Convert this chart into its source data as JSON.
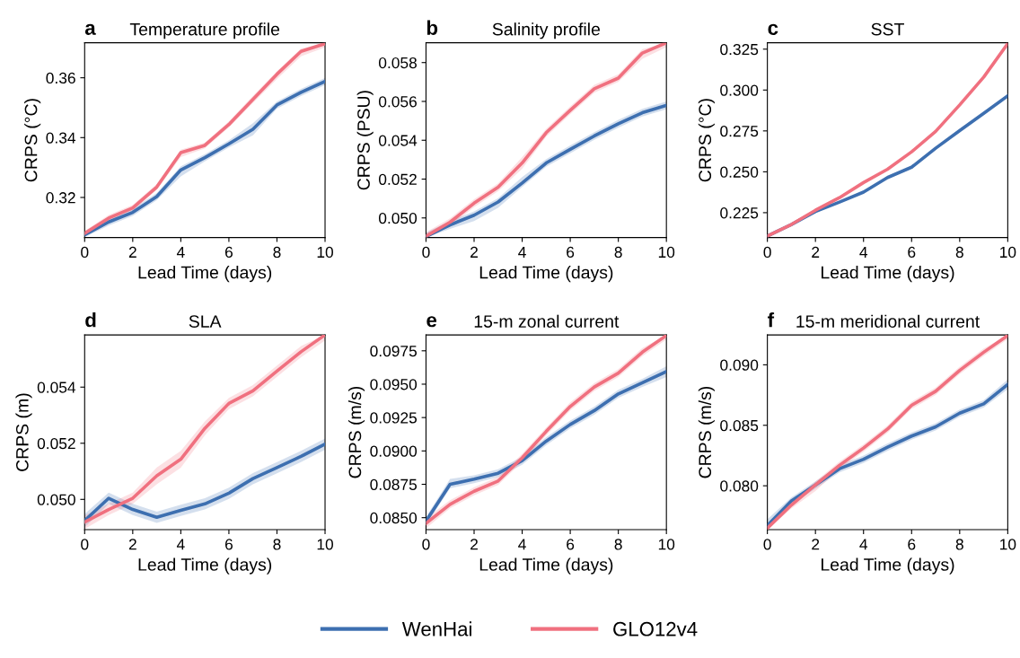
{
  "chart_data": [
    {
      "type": "line",
      "title": "Temperature profile",
      "annotations": [
        "a"
      ],
      "xlabel": "Lead Time (days)",
      "ylabel": "CRPS (°C)",
      "x": [
        0,
        1,
        2,
        3,
        4,
        5,
        6,
        7,
        8,
        9,
        10
      ],
      "xlim": [
        0,
        10
      ],
      "xticks": [
        0,
        2,
        4,
        6,
        8,
        10
      ],
      "ylim": [
        0.3066,
        0.3717
      ],
      "yticks": [
        0.32,
        0.34,
        0.36
      ],
      "legend": "bottom",
      "series": [
        {
          "name": "WenHai",
          "color": "#3d6fb0",
          "values": [
            0.3075,
            0.3118,
            0.315,
            0.3203,
            0.3292,
            0.3333,
            0.3379,
            0.3428,
            0.3509,
            0.3551,
            0.3588
          ],
          "lower": [
            0.3067,
            0.3106,
            0.3138,
            0.3191,
            0.327,
            0.3321,
            0.3367,
            0.3408,
            0.3497,
            0.3539,
            0.3576
          ],
          "upper": [
            0.3083,
            0.313,
            0.3162,
            0.3215,
            0.3304,
            0.3345,
            0.3391,
            0.3448,
            0.3521,
            0.3563,
            0.36
          ]
        },
        {
          "name": "GLO12v4",
          "color": "#f0707f",
          "values": [
            0.308,
            0.3131,
            0.3165,
            0.3235,
            0.335,
            0.3374,
            0.3444,
            0.3528,
            0.3612,
            0.3688,
            0.3714
          ],
          "lower": [
            0.3072,
            0.3121,
            0.3155,
            0.3225,
            0.3335,
            0.3364,
            0.3434,
            0.3516,
            0.3596,
            0.3672,
            0.3702
          ],
          "upper": [
            0.3088,
            0.3141,
            0.3175,
            0.3245,
            0.336,
            0.3384,
            0.3454,
            0.354,
            0.3622,
            0.3698,
            0.3716
          ]
        }
      ]
    },
    {
      "type": "line",
      "title": "Salinity profile",
      "annotations": [
        "b"
      ],
      "xlabel": "Lead Time (days)",
      "ylabel": "CRPS (PSU)",
      "x": [
        0,
        1,
        2,
        3,
        4,
        5,
        6,
        7,
        8,
        9,
        10
      ],
      "xlim": [
        0,
        10
      ],
      "xticks": [
        0,
        2,
        4,
        6,
        8,
        10
      ],
      "ylim": [
        0.04899,
        0.05902
      ],
      "yticks": [
        {
          "value": 0.05,
          "label": "0.050"
        },
        {
          "value": 0.052,
          "label": "0.052"
        },
        {
          "value": 0.054,
          "label": "0.054"
        },
        {
          "value": 0.056,
          "label": "0.056"
        },
        {
          "value": 0.058,
          "label": "0.058"
        }
      ],
      "series": [
        {
          "color": "#3d6fb0",
          "values": [
            0.04904,
            0.04964,
            0.05014,
            0.05082,
            0.0518,
            0.05283,
            0.05353,
            0.05422,
            0.05485,
            0.05542,
            0.0558
          ],
          "lower": [
            0.049,
            0.04944,
            0.04984,
            0.05052,
            0.0516,
            0.05263,
            0.05333,
            0.05402,
            0.05465,
            0.05522,
            0.0556
          ],
          "upper": [
            0.04924,
            0.04984,
            0.05034,
            0.05102,
            0.0521,
            0.05303,
            0.05373,
            0.05442,
            0.05505,
            0.05562,
            0.056
          ]
        },
        {
          "color": "#f0707f",
          "values": [
            0.04906,
            0.04978,
            0.05076,
            0.05158,
            0.05283,
            0.05439,
            0.05554,
            0.05665,
            0.0572,
            0.05849,
            0.05902
          ],
          "lower": [
            0.049,
            0.04958,
            0.05056,
            0.05138,
            0.05253,
            0.05419,
            0.05534,
            0.05645,
            0.057,
            0.05819,
            0.0588
          ],
          "upper": [
            0.04926,
            0.04998,
            0.05096,
            0.05178,
            0.05313,
            0.05459,
            0.05574,
            0.05685,
            0.0574,
            0.05869,
            0.05902
          ]
        }
      ]
    },
    {
      "type": "line",
      "title": "SST",
      "annotations": [
        "c"
      ],
      "xlabel": "Lead Time (days)",
      "ylabel": "CRPS (°C)",
      "x": [
        0,
        1,
        2,
        3,
        4,
        5,
        6,
        7,
        8,
        9,
        10
      ],
      "xlim": [
        0,
        10
      ],
      "xticks": [
        0,
        2,
        4,
        6,
        8,
        10
      ],
      "ylim": [
        0.2098,
        0.3289
      ],
      "yticks": [
        {
          "value": 0.225,
          "label": "0.225"
        },
        {
          "value": 0.25,
          "label": "0.250"
        },
        {
          "value": 0.275,
          "label": "0.275"
        },
        {
          "value": 0.3,
          "label": "0.300"
        },
        {
          "value": 0.325,
          "label": "0.325"
        }
      ],
      "series": [
        {
          "color": "#3d6fb0",
          "values": [
            0.2107,
            0.2178,
            0.2257,
            0.2315,
            0.2376,
            0.2465,
            0.2528,
            0.2644,
            0.2752,
            0.2858,
            0.2965
          ]
        },
        {
          "color": "#f0707f",
          "values": [
            0.2107,
            0.2178,
            0.2265,
            0.2342,
            0.2434,
            0.2516,
            0.2622,
            0.2747,
            0.2909,
            0.3079,
            0.3284
          ]
        }
      ]
    },
    {
      "type": "line",
      "title": "SLA",
      "annotations": [
        "d"
      ],
      "xlabel": "Lead Time (days)",
      "ylabel": "CRPS (m)",
      "x": [
        0,
        1,
        2,
        3,
        4,
        5,
        6,
        7,
        8,
        9,
        10
      ],
      "xlim": [
        0,
        10
      ],
      "xticks": [
        0,
        2,
        4,
        6,
        8,
        10
      ],
      "ylim": [
        0.04892,
        0.05586
      ],
      "yticks": [
        {
          "value": 0.05,
          "label": "0.050"
        },
        {
          "value": 0.052,
          "label": "0.052"
        },
        {
          "value": 0.054,
          "label": "0.054"
        }
      ],
      "series": [
        {
          "color": "#3d6fb0",
          "values": [
            0.04924,
            0.05004,
            0.04964,
            0.04936,
            0.04961,
            0.04984,
            0.05022,
            0.05074,
            0.05113,
            0.05153,
            0.05197
          ],
          "lower": [
            0.049,
            0.04984,
            0.04944,
            0.04916,
            0.04941,
            0.04964,
            0.05002,
            0.05054,
            0.05093,
            0.05133,
            0.05177
          ],
          "upper": [
            0.04948,
            0.05024,
            0.04984,
            0.04956,
            0.04981,
            0.05004,
            0.05042,
            0.05094,
            0.05133,
            0.05173,
            0.05217
          ]
        },
        {
          "color": "#f0707f",
          "values": [
            0.04919,
            0.04964,
            0.05004,
            0.05084,
            0.05143,
            0.05253,
            0.05342,
            0.05387,
            0.05457,
            0.05526,
            0.05586
          ],
          "lower": [
            0.04895,
            0.04944,
            0.04984,
            0.05054,
            0.05113,
            0.05228,
            0.05322,
            0.05367,
            0.05437,
            0.05506,
            0.05566
          ],
          "upper": [
            0.04943,
            0.04984,
            0.05024,
            0.05114,
            0.05173,
            0.05278,
            0.05362,
            0.05407,
            0.05477,
            0.05546,
            0.05586
          ]
        }
      ]
    },
    {
      "type": "line",
      "title": "15-m zonal current",
      "annotations": [
        "e"
      ],
      "xlabel": "Lead Time (days)",
      "ylabel": "CRPS (m/s)",
      "x": [
        0,
        1,
        2,
        3,
        4,
        5,
        6,
        7,
        8,
        9,
        10
      ],
      "xlim": [
        0,
        10
      ],
      "xticks": [
        0,
        2,
        4,
        6,
        8,
        10
      ],
      "ylim": [
        0.0841,
        0.09869
      ],
      "yticks": [
        {
          "value": 0.085,
          "label": "0.0850"
        },
        {
          "value": 0.0875,
          "label": "0.0875"
        },
        {
          "value": 0.09,
          "label": "0.0900"
        },
        {
          "value": 0.0925,
          "label": "0.0925"
        },
        {
          "value": 0.095,
          "label": "0.0950"
        },
        {
          "value": 0.0975,
          "label": "0.0975"
        }
      ],
      "series": [
        {
          "color": "#3d6fb0",
          "values": [
            0.08475,
            0.0875,
            0.08788,
            0.08833,
            0.08927,
            0.09073,
            0.09198,
            0.09302,
            0.09427,
            0.0951,
            0.09594
          ],
          "lower": [
            0.08445,
            0.0872,
            0.08758,
            0.08803,
            0.08897,
            0.09043,
            0.09168,
            0.09272,
            0.09397,
            0.0948,
            0.09554
          ],
          "upper": [
            0.08505,
            0.0879,
            0.08818,
            0.08863,
            0.08957,
            0.09103,
            0.09228,
            0.09332,
            0.09457,
            0.0954,
            0.09634
          ]
        },
        {
          "color": "#f0707f",
          "values": [
            0.08458,
            0.086,
            0.08698,
            0.08775,
            0.08948,
            0.09146,
            0.09333,
            0.09479,
            0.09583,
            0.0974,
            0.09865
          ],
          "lower": [
            0.0842,
            0.0857,
            0.08668,
            0.08745,
            0.08918,
            0.09116,
            0.09303,
            0.09449,
            0.09553,
            0.0971,
            0.09835
          ],
          "upper": [
            0.08496,
            0.0863,
            0.08728,
            0.08805,
            0.08978,
            0.09176,
            0.09363,
            0.09509,
            0.09613,
            0.0977,
            0.09869
          ]
        }
      ]
    },
    {
      "type": "line",
      "title": "15-m meridional current",
      "annotations": [
        "f"
      ],
      "xlabel": "Lead Time (days)",
      "ylabel": "CRPS (m/s)",
      "x": [
        0,
        1,
        2,
        3,
        4,
        5,
        6,
        7,
        8,
        9,
        10
      ],
      "xlim": [
        0,
        10
      ],
      "xticks": [
        0,
        2,
        4,
        6,
        8,
        10
      ],
      "ylim": [
        0.07637,
        0.09247
      ],
      "yticks": [
        {
          "value": 0.08,
          "label": "0.080"
        },
        {
          "value": 0.085,
          "label": "0.085"
        },
        {
          "value": 0.09,
          "label": "0.090"
        }
      ],
      "series": [
        {
          "color": "#3d6fb0",
          "values": [
            0.07672,
            0.07875,
            0.08007,
            0.08141,
            0.08219,
            0.08319,
            0.08411,
            0.08487,
            0.086,
            0.08677,
            0.08838
          ],
          "lower": [
            0.07642,
            0.07845,
            0.07977,
            0.08111,
            0.08189,
            0.08289,
            0.08381,
            0.08457,
            0.0857,
            0.08647,
            0.08798
          ],
          "upper": [
            0.07722,
            0.07905,
            0.08037,
            0.08171,
            0.08249,
            0.08349,
            0.08441,
            0.08517,
            0.0863,
            0.08707,
            0.08878
          ]
        },
        {
          "color": "#f0707f",
          "values": [
            0.07649,
            0.07841,
            0.08007,
            0.08169,
            0.08312,
            0.08469,
            0.08665,
            0.08781,
            0.08954,
            0.09104,
            0.09243
          ],
          "lower": [
            0.0764,
            0.07811,
            0.07957,
            0.08139,
            0.08282,
            0.08439,
            0.08635,
            0.08751,
            0.08924,
            0.09074,
            0.09213
          ],
          "upper": [
            0.07679,
            0.07871,
            0.08037,
            0.08199,
            0.08342,
            0.08499,
            0.08695,
            0.08811,
            0.08984,
            0.09134,
            0.09247
          ]
        }
      ]
    }
  ]
}
